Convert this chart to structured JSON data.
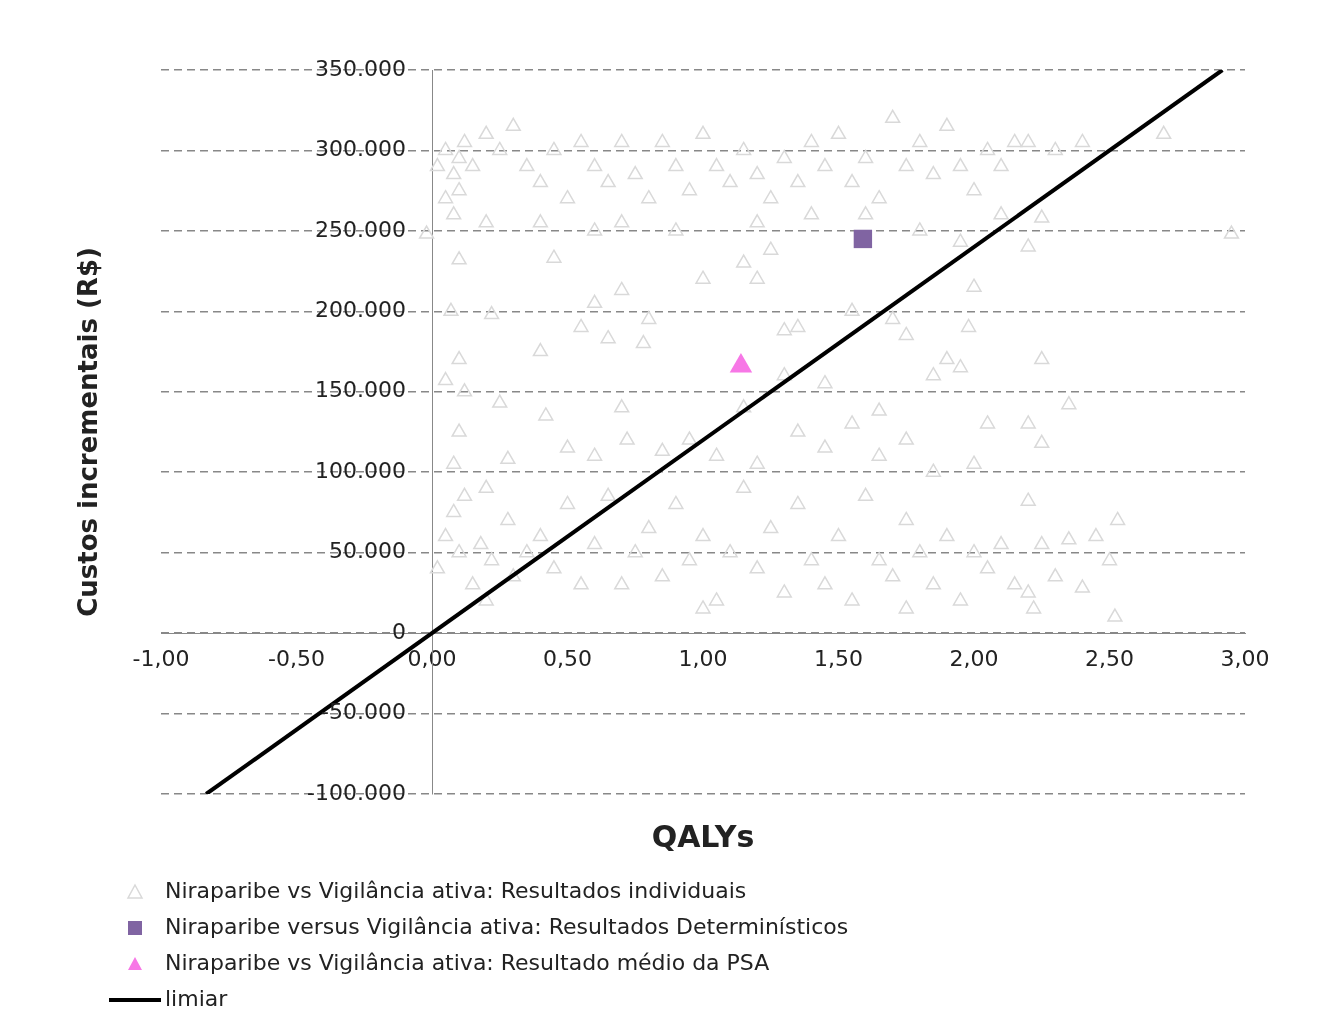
{
  "chart_data": {
    "type": "scatter",
    "xlabel": "QALYs",
    "ylabel": "Custos incrementais (R$)",
    "xlim": [
      -1,
      3
    ],
    "ylim": [
      -100000,
      350000
    ],
    "xticks": [
      {
        "value": -1,
        "label": "-1,00"
      },
      {
        "value": -0.5,
        "label": "-0,50"
      },
      {
        "value": 0,
        "label": "0,00"
      },
      {
        "value": 0.5,
        "label": "0,50"
      },
      {
        "value": 1,
        "label": "1,00"
      },
      {
        "value": 1.5,
        "label": "1,50"
      },
      {
        "value": 2,
        "label": "2,00"
      },
      {
        "value": 2.5,
        "label": "2,50"
      },
      {
        "value": 3,
        "label": "3,00"
      }
    ],
    "yticks": [
      {
        "value": -100000,
        "label": "-100.000"
      },
      {
        "value": -50000,
        "label": "-50.000"
      },
      0,
      {
        "value": 50000,
        "label": "50.000"
      },
      {
        "value": 100000,
        "label": "100.000"
      },
      {
        "value": 150000,
        "label": "150.000"
      },
      {
        "value": 200000,
        "label": "200.000"
      },
      {
        "value": 250000,
        "label": "250.000"
      },
      {
        "value": 300000,
        "label": "300.000"
      },
      {
        "value": 350000,
        "label": "350.000"
      }
    ],
    "grid": "y",
    "legend": "bottom left",
    "series": [
      {
        "name": "Niraparibe vs Vigilância ativa: Resultados individuais",
        "marker": "triangle",
        "color": "#d9d9d9",
        "x": [
          0.02,
          0.05,
          0.08,
          0.1,
          0.12,
          0.1,
          0.15,
          0.2,
          0.25,
          0.3,
          0.35,
          0.4,
          0.45,
          0.5,
          0.55,
          0.6,
          0.65,
          0.7,
          0.75,
          0.8,
          0.85,
          0.9,
          0.95,
          1.0,
          1.05,
          1.1,
          1.15,
          1.2,
          1.25,
          1.3,
          1.35,
          1.4,
          1.45,
          1.5,
          1.55,
          1.6,
          1.65,
          1.7,
          1.75,
          1.8,
          1.85,
          1.9,
          1.95,
          2.0,
          2.05,
          2.1,
          2.15,
          2.2,
          2.3,
          2.4,
          2.7,
          2.95,
          -0.02,
          0.08,
          0.05,
          0.2,
          0.4,
          0.6,
          0.7,
          0.9,
          1.2,
          1.4,
          1.6,
          1.8,
          2.2,
          2.25,
          1.95,
          2.1,
          0.1,
          0.45,
          0.6,
          0.55,
          0.07,
          0.22,
          0.7,
          0.8,
          0.65,
          0.78,
          1.0,
          1.15,
          1.2,
          1.3,
          1.35,
          1.25,
          1.55,
          1.7,
          1.75,
          1.85,
          1.95,
          2.0,
          1.98,
          1.9,
          2.25,
          2.35,
          2.2,
          2.25,
          0.05,
          0.1,
          0.12,
          0.1,
          0.25,
          0.42,
          0.5,
          0.6,
          0.7,
          0.72,
          0.85,
          0.95,
          1.05,
          1.15,
          1.2,
          1.35,
          1.45,
          1.55,
          1.65,
          1.75,
          1.85,
          2.0,
          2.05,
          0.08,
          0.28,
          0.4,
          0.2,
          1.45,
          1.65,
          1.3,
          0.02,
          0.05,
          0.08,
          0.1,
          0.12,
          0.15,
          0.18,
          0.22,
          0.28,
          0.3,
          0.35,
          0.4,
          0.45,
          0.5,
          0.55,
          0.6,
          0.65,
          0.7,
          0.75,
          0.8,
          0.85,
          0.9,
          0.95,
          1.0,
          1.05,
          1.1,
          1.15,
          1.2,
          1.25,
          1.3,
          1.35,
          1.4,
          1.45,
          1.5,
          1.55,
          1.6,
          1.65,
          1.7,
          1.75,
          1.8,
          1.85,
          1.9,
          1.95,
          2.0,
          2.05,
          2.1,
          2.15,
          2.2,
          2.25,
          2.3,
          2.4,
          2.45,
          2.5,
          2.52,
          2.53,
          2.22,
          1.75,
          1.0,
          0.2,
          2.2,
          2.35
        ],
        "values": [
          290000,
          300000,
          285000,
          295000,
          305000,
          275000,
          290000,
          310000,
          300000,
          315000,
          290000,
          280000,
          300000,
          270000,
          305000,
          290000,
          280000,
          305000,
          285000,
          270000,
          305000,
          290000,
          275000,
          310000,
          290000,
          280000,
          300000,
          285000,
          270000,
          295000,
          280000,
          305000,
          290000,
          310000,
          280000,
          295000,
          270000,
          320000,
          290000,
          305000,
          285000,
          315000,
          290000,
          275000,
          300000,
          290000,
          305000,
          305000,
          300000,
          305000,
          310000,
          248000,
          248000,
          260000,
          270000,
          255000,
          255000,
          250000,
          255000,
          250000,
          255000,
          260000,
          260000,
          250000,
          240000,
          258000,
          243000,
          260000,
          232000,
          233000,
          205000,
          190000,
          200000,
          198000,
          213000,
          195000,
          183000,
          180000,
          220000,
          230000,
          220000,
          188000,
          190000,
          238000,
          200000,
          195000,
          185000,
          160000,
          165000,
          215000,
          190000,
          170000,
          170000,
          142000,
          130000,
          118000,
          157000,
          170000,
          150000,
          125000,
          143000,
          135000,
          115000,
          110000,
          140000,
          120000,
          113000,
          120000,
          110000,
          140000,
          105000,
          125000,
          115000,
          130000,
          110000,
          120000,
          100000,
          105000,
          130000,
          105000,
          108000,
          175000,
          90000,
          155000,
          138000,
          160000,
          40000,
          60000,
          75000,
          50000,
          85000,
          30000,
          55000,
          45000,
          70000,
          35000,
          50000,
          60000,
          40000,
          80000,
          30000,
          55000,
          85000,
          30000,
          50000,
          65000,
          35000,
          80000,
          45000,
          60000,
          20000,
          50000,
          90000,
          40000,
          65000,
          25000,
          80000,
          45000,
          30000,
          60000,
          20000,
          85000,
          45000,
          35000,
          70000,
          50000,
          30000,
          60000,
          20000,
          50000,
          40000,
          55000,
          30000,
          25000,
          55000,
          35000,
          28000,
          60000,
          45000,
          10000,
          70000,
          15000,
          15000,
          15000,
          20000,
          82000,
          58000
        ]
      },
      {
        "name": "Niraparibe versus Vigilância ativa: Resultados Determinísticos",
        "marker": "square",
        "color": "#8064a2",
        "x": [
          1.59
        ],
        "values": [
          245000
        ]
      },
      {
        "name": "Niraparibe vs Vigilância ativa: Resultado médio da PSA",
        "marker": "triangle",
        "color": "#f777e6",
        "x": [
          1.14
        ],
        "values": [
          166000
        ]
      },
      {
        "name": "limiar",
        "type": "line",
        "marker": "none",
        "color": "#000000",
        "x": [
          -0.8333,
          2.9167
        ],
        "values": [
          -100000,
          350000
        ]
      }
    ]
  }
}
